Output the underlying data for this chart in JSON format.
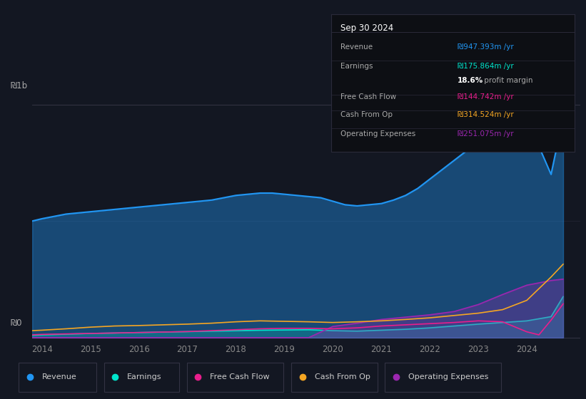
{
  "background_color": "#131722",
  "title_box": {
    "date": "Sep 30 2024",
    "rows": [
      {
        "label": "Revenue",
        "value": "₪947.393m /yr",
        "value_color": "#2196f3"
      },
      {
        "label": "Earnings",
        "value": "₪175.864m /yr",
        "value_color": "#00e5cc"
      },
      {
        "label": "",
        "value": "18.6% profit margin",
        "value_color": "#ffffff"
      },
      {
        "label": "Free Cash Flow",
        "value": "₪144.742m /yr",
        "value_color": "#e91e8c"
      },
      {
        "label": "Cash From Op",
        "value": "₪314.524m /yr",
        "value_color": "#f5a623"
      },
      {
        "label": "Operating Expenses",
        "value": "₪251.075m /yr",
        "value_color": "#9c27b0"
      }
    ]
  },
  "ylabel_top": "₪1b",
  "ylabel_bottom": "₪0",
  "x_years": [
    2014,
    2015,
    2016,
    2017,
    2018,
    2019,
    2020,
    2021,
    2022,
    2023,
    2024
  ],
  "series": {
    "Revenue": {
      "color": "#2196f3",
      "fill_alpha": 0.4,
      "data_x": [
        2013.8,
        2014.0,
        2014.25,
        2014.5,
        2014.75,
        2015.0,
        2015.25,
        2015.5,
        2015.75,
        2016.0,
        2016.25,
        2016.5,
        2016.75,
        2017.0,
        2017.25,
        2017.5,
        2017.75,
        2018.0,
        2018.25,
        2018.5,
        2018.75,
        2019.0,
        2019.25,
        2019.5,
        2019.75,
        2020.0,
        2020.25,
        2020.5,
        2020.75,
        2021.0,
        2021.25,
        2021.5,
        2021.75,
        2022.0,
        2022.25,
        2022.5,
        2022.75,
        2023.0,
        2023.25,
        2023.5,
        2023.75,
        2024.0,
        2024.25,
        2024.5,
        2024.75
      ],
      "data_y": [
        0.5,
        0.51,
        0.52,
        0.53,
        0.535,
        0.54,
        0.545,
        0.55,
        0.555,
        0.56,
        0.565,
        0.57,
        0.575,
        0.58,
        0.585,
        0.59,
        0.6,
        0.61,
        0.615,
        0.62,
        0.62,
        0.615,
        0.61,
        0.605,
        0.6,
        0.585,
        0.57,
        0.565,
        0.57,
        0.575,
        0.59,
        0.61,
        0.64,
        0.68,
        0.72,
        0.76,
        0.8,
        0.845,
        0.875,
        0.91,
        0.945,
        0.975,
        0.82,
        0.7,
        0.947
      ]
    },
    "Earnings": {
      "color": "#00e5cc",
      "fill_alpha": 0.2,
      "data_x": [
        2013.8,
        2014.0,
        2014.5,
        2015.0,
        2015.5,
        2016.0,
        2016.5,
        2017.0,
        2017.5,
        2018.0,
        2018.5,
        2019.0,
        2019.5,
        2020.0,
        2020.5,
        2021.0,
        2021.5,
        2022.0,
        2022.5,
        2023.0,
        2023.5,
        2024.0,
        2024.5,
        2024.75
      ],
      "data_y": [
        0.01,
        0.012,
        0.015,
        0.018,
        0.02,
        0.022,
        0.024,
        0.026,
        0.028,
        0.03,
        0.032,
        0.033,
        0.034,
        0.03,
        0.028,
        0.032,
        0.036,
        0.042,
        0.05,
        0.058,
        0.065,
        0.072,
        0.09,
        0.176
      ]
    },
    "Free Cash Flow": {
      "color": "#e91e8c",
      "data_x": [
        2013.8,
        2014.0,
        2014.5,
        2015.0,
        2015.5,
        2016.0,
        2016.5,
        2017.0,
        2017.5,
        2018.0,
        2018.5,
        2019.0,
        2019.5,
        2020.0,
        2020.5,
        2021.0,
        2021.5,
        2022.0,
        2022.5,
        2023.0,
        2023.5,
        2024.0,
        2024.25,
        2024.5,
        2024.75
      ],
      "data_y": [
        0.012,
        0.014,
        0.016,
        0.018,
        0.02,
        0.022,
        0.024,
        0.026,
        0.03,
        0.034,
        0.038,
        0.04,
        0.04,
        0.038,
        0.042,
        0.05,
        0.055,
        0.06,
        0.065,
        0.072,
        0.068,
        0.025,
        0.012,
        0.075,
        0.145
      ]
    },
    "Cash From Op": {
      "color": "#f5a623",
      "data_x": [
        2013.8,
        2014.0,
        2014.5,
        2015.0,
        2015.5,
        2016.0,
        2016.5,
        2017.0,
        2017.5,
        2018.0,
        2018.5,
        2019.0,
        2019.5,
        2020.0,
        2020.5,
        2021.0,
        2021.5,
        2022.0,
        2022.5,
        2023.0,
        2023.5,
        2024.0,
        2024.5,
        2024.75
      ],
      "data_y": [
        0.03,
        0.032,
        0.038,
        0.045,
        0.05,
        0.052,
        0.055,
        0.058,
        0.062,
        0.068,
        0.072,
        0.07,
        0.068,
        0.065,
        0.068,
        0.072,
        0.078,
        0.085,
        0.095,
        0.105,
        0.12,
        0.16,
        0.26,
        0.315
      ]
    },
    "Operating Expenses": {
      "color": "#9c27b0",
      "fill_alpha": 0.3,
      "data_x": [
        2013.8,
        2014.0,
        2014.5,
        2015.0,
        2015.5,
        2016.0,
        2016.5,
        2017.0,
        2017.5,
        2018.0,
        2018.5,
        2019.0,
        2019.5,
        2020.0,
        2020.5,
        2021.0,
        2021.5,
        2022.0,
        2022.5,
        2023.0,
        2023.5,
        2024.0,
        2024.5,
        2024.75
      ],
      "data_y": [
        0.0,
        0.0,
        0.0,
        0.0,
        0.0,
        0.0,
        0.0,
        0.0,
        0.0,
        0.0,
        0.0,
        0.0,
        0.0,
        0.048,
        0.062,
        0.078,
        0.088,
        0.098,
        0.112,
        0.142,
        0.185,
        0.225,
        0.245,
        0.251
      ]
    }
  },
  "legend": [
    {
      "label": "Revenue",
      "color": "#2196f3"
    },
    {
      "label": "Earnings",
      "color": "#00e5cc"
    },
    {
      "label": "Free Cash Flow",
      "color": "#e91e8c"
    },
    {
      "label": "Cash From Op",
      "color": "#f5a623"
    },
    {
      "label": "Operating Expenses",
      "color": "#9c27b0"
    }
  ]
}
